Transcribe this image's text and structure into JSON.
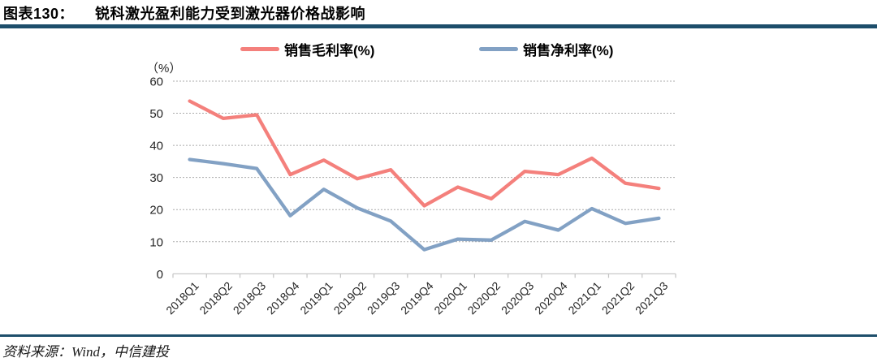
{
  "header": {
    "figure_label": "图表130：",
    "title": "锐科激光盈利能力受到激光器价格战影响"
  },
  "chart_data": {
    "type": "line",
    "unit_label": "（%）",
    "categories": [
      "2018Q1",
      "2018Q2",
      "2018Q3",
      "2018Q4",
      "2019Q1",
      "2019Q2",
      "2019Q3",
      "2019Q4",
      "2020Q1",
      "2020Q2",
      "2020Q3",
      "2020Q4",
      "2021Q1",
      "2021Q2",
      "2021Q3"
    ],
    "series": [
      {
        "name": "销售毛利率(%)",
        "color": "#F4807C",
        "values": [
          53.8,
          48.4,
          49.5,
          30.9,
          35.4,
          29.6,
          32.4,
          21.2,
          27.0,
          23.4,
          31.9,
          30.9,
          36.0,
          28.2,
          26.6
        ]
      },
      {
        "name": "销售净利率(%)",
        "color": "#82A1C4",
        "values": [
          35.6,
          34.3,
          32.8,
          18.1,
          26.3,
          20.5,
          16.4,
          7.5,
          10.8,
          10.5,
          16.3,
          13.6,
          20.3,
          15.7,
          17.3
        ]
      }
    ],
    "ylim": [
      0,
      60
    ],
    "ytick_interval": 10,
    "grid": true,
    "legend_position": "top"
  },
  "footer": {
    "source": "资料来源：Wind，中信建投"
  },
  "colors": {
    "accent_rule": "#1D4E6B",
    "gridline": "#ABABAB",
    "axis_line": "#C3C3C3",
    "axis_text": "#262626"
  }
}
